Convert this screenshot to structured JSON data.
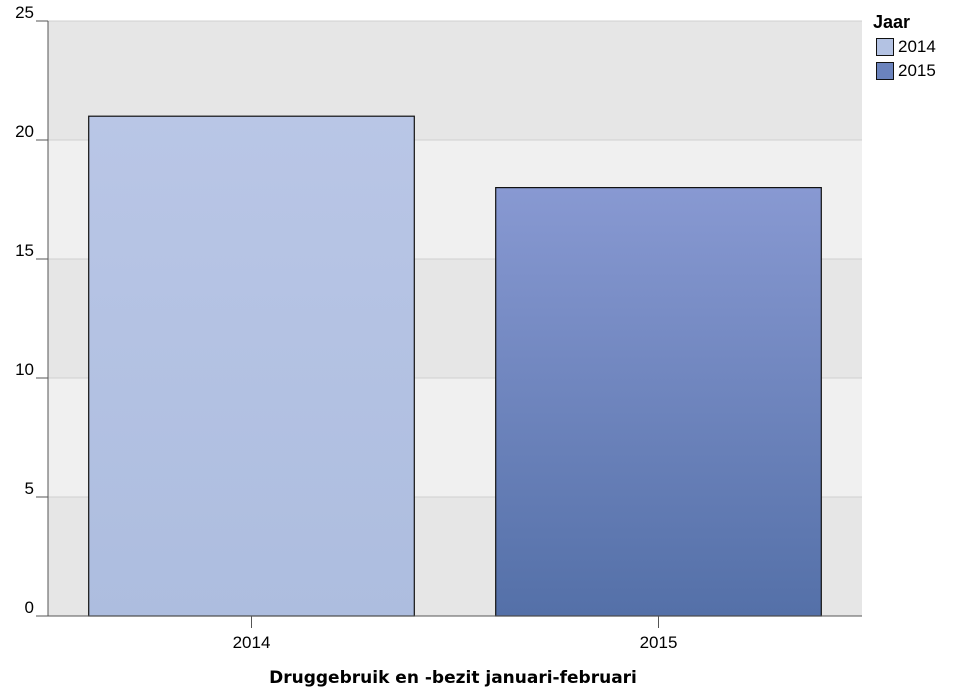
{
  "chart_data": {
    "type": "bar",
    "categories": [
      "2014",
      "2015"
    ],
    "values": [
      21,
      18
    ],
    "colors": [
      "#b3c2e3",
      "#6b83bd"
    ],
    "gradients": [
      [
        "#b9c6e6",
        "#adbddf"
      ],
      [
        "#8899d2",
        "#5470a8"
      ]
    ],
    "title": "",
    "xlabel": "Druggebruik en -bezit januari-februari",
    "ylabel": "",
    "ylim": [
      0,
      25
    ],
    "yticks": [
      0,
      5,
      10,
      15,
      20,
      25
    ],
    "grid": true,
    "legend": {
      "title": "Jaar",
      "position": "top-right",
      "entries": [
        "2014",
        "2015"
      ]
    }
  }
}
